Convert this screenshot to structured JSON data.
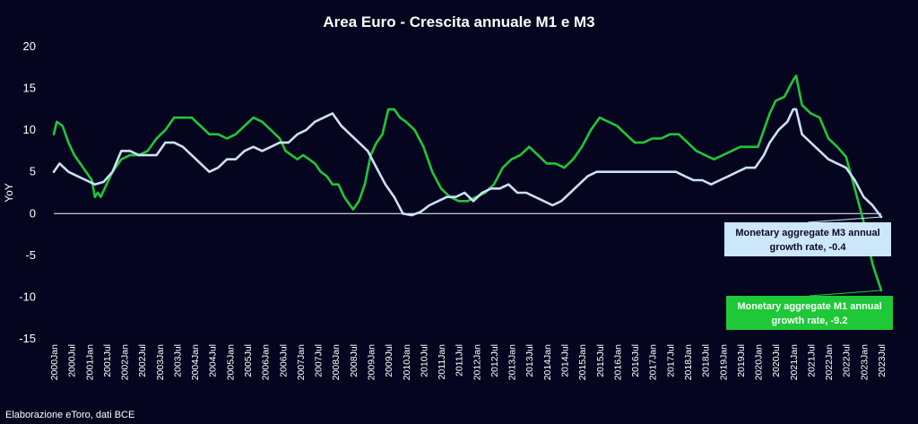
{
  "chart_data": {
    "type": "line",
    "title": "Area Euro - Crescita annuale M1 e M3",
    "ylabel": "YoY",
    "xlabel": "",
    "ylim": [
      -15,
      20
    ],
    "yticks": [
      20,
      15,
      10,
      5,
      0,
      -5,
      -10,
      -15
    ],
    "x_start": "2000Jan",
    "x_end": "2023Jul",
    "xticks": [
      "2000Jan",
      "2000Jul",
      "2001Jan",
      "2001Jul",
      "2002Jan",
      "2002Jul",
      "2003Jan",
      "2003Jul",
      "2004Jan",
      "2004Jul",
      "2005Jan",
      "2005Jul",
      "2006Jan",
      "2006Jul",
      "2007Jan",
      "2007Jul",
      "2008Jan",
      "2008Jul",
      "2009Jan",
      "2009Jul",
      "2010Jan",
      "2010Jul",
      "2011Jan",
      "2011Jul",
      "2012Jan",
      "2012Jul",
      "2013Jan",
      "2013Jul",
      "2014Jan",
      "2014Jul",
      "2015Jan",
      "2015Jul",
      "2016Jan",
      "2016Jul",
      "2017Jan",
      "2017Jul",
      "2018Jan",
      "2018Jul",
      "2019Jan",
      "2019Jul",
      "2020Jan",
      "2020Jul",
      "2021Jan",
      "2021Jul",
      "2022Jan",
      "2022Jul",
      "2023Jan",
      "2023Jul"
    ],
    "grid": false,
    "series": [
      {
        "key": "m1",
        "color": "#1ec838",
        "points": [
          [
            "2000Jan",
            9.5
          ],
          [
            "2000Feb",
            11
          ],
          [
            "2000Apr",
            10.5
          ],
          [
            "2000Jun",
            8.5
          ],
          [
            "2000Aug",
            7
          ],
          [
            "2000Oct",
            6
          ],
          [
            "2000Dec",
            5
          ],
          [
            "2001Feb",
            4
          ],
          [
            "2001Mar",
            2
          ],
          [
            "2001Apr",
            2.5
          ],
          [
            "2001May",
            2
          ],
          [
            "2001Jul",
            3.5
          ],
          [
            "2001Sep",
            5
          ],
          [
            "2001Dec",
            6.5
          ],
          [
            "2002Mar",
            7
          ],
          [
            "2002Jun",
            7
          ],
          [
            "2002Sep",
            7.5
          ],
          [
            "2002Dec",
            9
          ],
          [
            "2003Mar",
            10
          ],
          [
            "2003Jun",
            11.5
          ],
          [
            "2003Sep",
            11.5
          ],
          [
            "2003Dec",
            11.5
          ],
          [
            "2004Mar",
            10.5
          ],
          [
            "2004Jun",
            9.5
          ],
          [
            "2004Sep",
            9.5
          ],
          [
            "2004Dec",
            9
          ],
          [
            "2005Mar",
            9.5
          ],
          [
            "2005Jun",
            10.5
          ],
          [
            "2005Sep",
            11.5
          ],
          [
            "2005Dec",
            11
          ],
          [
            "2006Mar",
            10
          ],
          [
            "2006Jun",
            9
          ],
          [
            "2006Aug",
            7.5
          ],
          [
            "2006Oct",
            7
          ],
          [
            "2006Dec",
            6.5
          ],
          [
            "2007Feb",
            7
          ],
          [
            "2007Apr",
            6.5
          ],
          [
            "2007Jun",
            6
          ],
          [
            "2007Aug",
            5
          ],
          [
            "2007Oct",
            4.5
          ],
          [
            "2007Dec",
            3.5
          ],
          [
            "2008Feb",
            3.5
          ],
          [
            "2008Apr",
            2
          ],
          [
            "2008Jun",
            1
          ],
          [
            "2008Jul",
            0.5
          ],
          [
            "2008Sep",
            1.5
          ],
          [
            "2008Nov",
            3.5
          ],
          [
            "2009Jan",
            7
          ],
          [
            "2009Mar",
            8.5
          ],
          [
            "2009May",
            9.5
          ],
          [
            "2009Jul",
            12.5
          ],
          [
            "2009Sep",
            12.5
          ],
          [
            "2009Nov",
            11.5
          ],
          [
            "2010Jan",
            11
          ],
          [
            "2010Apr",
            10
          ],
          [
            "2010Jul",
            8
          ],
          [
            "2010Oct",
            5
          ],
          [
            "2011Jan",
            3
          ],
          [
            "2011Apr",
            2
          ],
          [
            "2011Jul",
            1.5
          ],
          [
            "2011Oct",
            1.5
          ],
          [
            "2012Jan",
            2
          ],
          [
            "2012Apr",
            2.5
          ],
          [
            "2012Jul",
            3.5
          ],
          [
            "2012Oct",
            5.5
          ],
          [
            "2013Jan",
            6.5
          ],
          [
            "2013Apr",
            7
          ],
          [
            "2013Jul",
            8
          ],
          [
            "2013Oct",
            7
          ],
          [
            "2014Jan",
            6
          ],
          [
            "2014Apr",
            6
          ],
          [
            "2014Jul",
            5.5
          ],
          [
            "2014Oct",
            6.5
          ],
          [
            "2015Jan",
            8
          ],
          [
            "2015Apr",
            10
          ],
          [
            "2015Jul",
            11.5
          ],
          [
            "2015Oct",
            11
          ],
          [
            "2016Jan",
            10.5
          ],
          [
            "2016Apr",
            9.5
          ],
          [
            "2016Jul",
            8.5
          ],
          [
            "2016Oct",
            8.5
          ],
          [
            "2017Jan",
            9
          ],
          [
            "2017Apr",
            9
          ],
          [
            "2017Jul",
            9.5
          ],
          [
            "2017Oct",
            9.5
          ],
          [
            "2018Jan",
            8.5
          ],
          [
            "2018Apr",
            7.5
          ],
          [
            "2018Jul",
            7
          ],
          [
            "2018Oct",
            6.5
          ],
          [
            "2019Jan",
            7
          ],
          [
            "2019Apr",
            7.5
          ],
          [
            "2019Jul",
            8
          ],
          [
            "2019Oct",
            8
          ],
          [
            "2020Jan",
            8
          ],
          [
            "2020Mar",
            10
          ],
          [
            "2020May",
            12
          ],
          [
            "2020Jul",
            13.5
          ],
          [
            "2020Oct",
            14
          ],
          [
            "2021Jan",
            16
          ],
          [
            "2021Feb",
            16.5
          ],
          [
            "2021Apr",
            13
          ],
          [
            "2021Jul",
            12
          ],
          [
            "2021Oct",
            11.5
          ],
          [
            "2022Jan",
            9
          ],
          [
            "2022Apr",
            8
          ],
          [
            "2022Jul",
            6.8
          ],
          [
            "2022Oct",
            3
          ],
          [
            "2023Jan",
            -1
          ],
          [
            "2023Apr",
            -6
          ],
          [
            "2023Jul",
            -9.2
          ]
        ]
      },
      {
        "key": "m3",
        "color": "#cce0f7",
        "points": [
          [
            "2000Jan",
            5
          ],
          [
            "2000Mar",
            6
          ],
          [
            "2000Jun",
            5
          ],
          [
            "2000Sep",
            4.5
          ],
          [
            "2000Dec",
            4
          ],
          [
            "2001Mar",
            3.5
          ],
          [
            "2001Jun",
            3.8
          ],
          [
            "2001Sep",
            5
          ],
          [
            "2001Dec",
            7.5
          ],
          [
            "2002Mar",
            7.5
          ],
          [
            "2002Jun",
            7
          ],
          [
            "2002Sep",
            7
          ],
          [
            "2002Dec",
            7
          ],
          [
            "2003Mar",
            8.5
          ],
          [
            "2003Jun",
            8.5
          ],
          [
            "2003Sep",
            8
          ],
          [
            "2003Dec",
            7
          ],
          [
            "2004Mar",
            6
          ],
          [
            "2004Jun",
            5
          ],
          [
            "2004Sep",
            5.5
          ],
          [
            "2004Dec",
            6.5
          ],
          [
            "2005Mar",
            6.5
          ],
          [
            "2005Jun",
            7.5
          ],
          [
            "2005Sep",
            8
          ],
          [
            "2005Dec",
            7.5
          ],
          [
            "2006Mar",
            8
          ],
          [
            "2006Jun",
            8.5
          ],
          [
            "2006Sep",
            8.5
          ],
          [
            "2006Dec",
            9.5
          ],
          [
            "2007Mar",
            10
          ],
          [
            "2007Jun",
            11
          ],
          [
            "2007Sep",
            11.5
          ],
          [
            "2007Dec",
            12
          ],
          [
            "2008Mar",
            10.5
          ],
          [
            "2008Jun",
            9.5
          ],
          [
            "2008Sep",
            8.5
          ],
          [
            "2008Dec",
            7.5
          ],
          [
            "2009Mar",
            5.5
          ],
          [
            "2009Jun",
            3.5
          ],
          [
            "2009Sep",
            2
          ],
          [
            "2009Dec",
            0
          ],
          [
            "2010Mar",
            -0.2
          ],
          [
            "2010Jun",
            0.2
          ],
          [
            "2010Sep",
            1
          ],
          [
            "2010Dec",
            1.5
          ],
          [
            "2011Mar",
            2
          ],
          [
            "2011Jun",
            2
          ],
          [
            "2011Sep",
            2.5
          ],
          [
            "2011Dec",
            1.5
          ],
          [
            "2012Mar",
            2.5
          ],
          [
            "2012Jun",
            3
          ],
          [
            "2012Sep",
            3
          ],
          [
            "2012Dec",
            3.5
          ],
          [
            "2013Mar",
            2.5
          ],
          [
            "2013Jun",
            2.5
          ],
          [
            "2013Sep",
            2
          ],
          [
            "2013Dec",
            1.5
          ],
          [
            "2014Mar",
            1
          ],
          [
            "2014Jun",
            1.5
          ],
          [
            "2014Sep",
            2.5
          ],
          [
            "2014Dec",
            3.5
          ],
          [
            "2015Mar",
            4.5
          ],
          [
            "2015Jun",
            5
          ],
          [
            "2015Sep",
            5
          ],
          [
            "2015Dec",
            5
          ],
          [
            "2016Mar",
            5
          ],
          [
            "2016Jun",
            5
          ],
          [
            "2016Sep",
            5
          ],
          [
            "2016Dec",
            5
          ],
          [
            "2017Mar",
            5
          ],
          [
            "2017Jun",
            5
          ],
          [
            "2017Sep",
            5
          ],
          [
            "2017Dec",
            4.5
          ],
          [
            "2018Mar",
            4
          ],
          [
            "2018Jun",
            4
          ],
          [
            "2018Sep",
            3.5
          ],
          [
            "2018Dec",
            4
          ],
          [
            "2019Mar",
            4.5
          ],
          [
            "2019Jun",
            5
          ],
          [
            "2019Sep",
            5.5
          ],
          [
            "2019Dec",
            5.5
          ],
          [
            "2020Mar",
            7
          ],
          [
            "2020May",
            8.5
          ],
          [
            "2020Aug",
            10
          ],
          [
            "2020Nov",
            11
          ],
          [
            "2021Jan",
            12.5
          ],
          [
            "2021Feb",
            12.5
          ],
          [
            "2021Apr",
            9.5
          ],
          [
            "2021Jul",
            8.5
          ],
          [
            "2021Oct",
            7.5
          ],
          [
            "2022Jan",
            6.5
          ],
          [
            "2022Apr",
            6
          ],
          [
            "2022Jul",
            5.5
          ],
          [
            "2022Oct",
            4
          ],
          [
            "2023Jan",
            2
          ],
          [
            "2023Apr",
            1
          ],
          [
            "2023Jul",
            -0.4
          ]
        ]
      }
    ],
    "annotations": [
      {
        "key": "m3",
        "text_line1": "Monetary aggregate M3 annual",
        "text_line2": "growth rate, -0.4",
        "bg": "#cce6fb",
        "fg": "#0b0b22"
      },
      {
        "key": "m1",
        "text_line1": "Monetary aggregate M1 annual",
        "text_line2": "growth rate, -9.2",
        "bg": "#1ec838",
        "fg": "#ffffff"
      }
    ],
    "source": "Elaborazione eToro, dati BCE"
  }
}
